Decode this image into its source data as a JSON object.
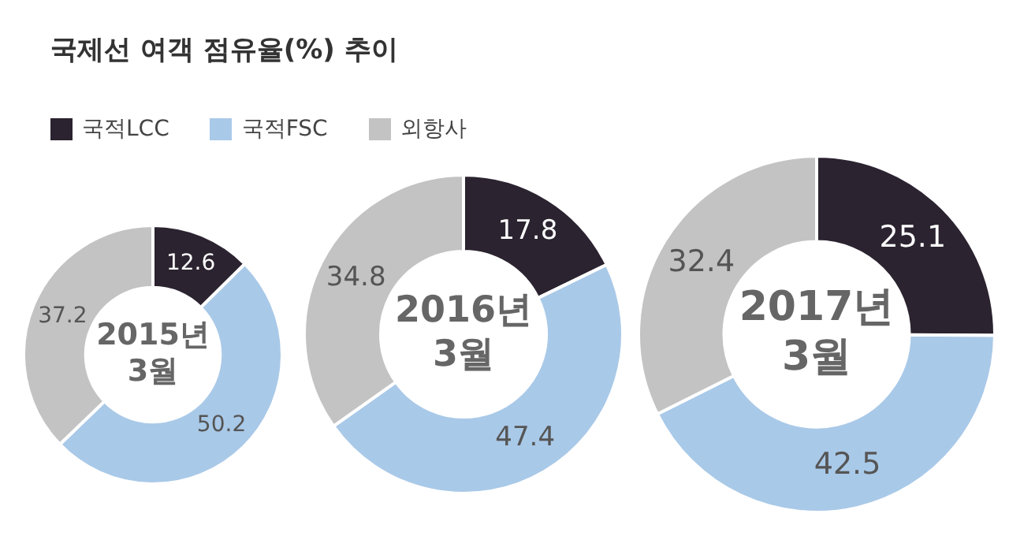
{
  "chart_data": [
    {
      "type": "donut",
      "title": "국제선 여객 점유율(%) 추이",
      "categories": [
        "국적LCC",
        "국적FSC",
        "외항사"
      ],
      "values": [
        12.6,
        50.2,
        37.2
      ],
      "colors": [
        "#2b2330",
        "#a9c9e8",
        "#c3c3c3"
      ],
      "data_labels": true,
      "legend": "top",
      "annotations": [
        "2015년 3월"
      ]
    },
    {
      "type": "donut",
      "categories": [
        null,
        null,
        null
      ],
      "values": [
        17.8,
        47.4,
        34.8
      ],
      "colors": [
        "#2b2330",
        "#a9c9e8",
        "#c3c3c3"
      ],
      "data_labels": true,
      "annotations": [
        "2016년 3월"
      ]
    },
    {
      "type": "donut",
      "categories": [
        null,
        null,
        null
      ],
      "values": [
        25.1,
        42.5,
        32.4
      ],
      "colors": [
        "#2b2330",
        "#a9c9e8",
        "#c3c3c3"
      ],
      "data_labels": true,
      "annotations": [
        "2017년 3월"
      ]
    }
  ]
}
